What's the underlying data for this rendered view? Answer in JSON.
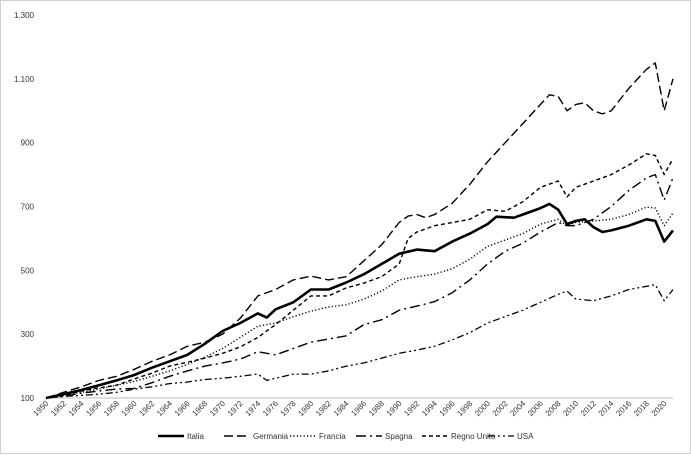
{
  "chart_data": {
    "type": "line",
    "title": "",
    "xlabel": "",
    "ylabel": "",
    "ylim": [
      100,
      1300
    ],
    "yticks": [
      100,
      300,
      500,
      700,
      900,
      1100,
      1300
    ],
    "ytick_labels": [
      "100",
      "300",
      "500",
      "700",
      "900",
      "1.100",
      "1.300"
    ],
    "xlim": [
      1950,
      2021
    ],
    "xtick_labels": [
      "1950",
      "1952",
      "1954",
      "1956",
      "1958",
      "1960",
      "1962",
      "1964",
      "1966",
      "1968",
      "1970",
      "1972",
      "1974",
      "1976",
      "1978",
      "1980",
      "1982",
      "1984",
      "1986",
      "1988",
      "1990",
      "1992",
      "1994",
      "1996",
      "1998",
      "2000",
      "2002",
      "2004",
      "2006",
      "2008",
      "2010",
      "2012",
      "2014",
      "2016",
      "2018",
      "2020"
    ],
    "grid": false,
    "legend_position": "bottom",
    "series": [
      {
        "name": "Italia",
        "color": "#000000",
        "style": "solid-thick",
        "points": [
          [
            1950,
            100
          ],
          [
            1952,
            112
          ],
          [
            1954,
            125
          ],
          [
            1956,
            140
          ],
          [
            1958,
            155
          ],
          [
            1960,
            172
          ],
          [
            1962,
            195
          ],
          [
            1964,
            215
          ],
          [
            1966,
            235
          ],
          [
            1968,
            270
          ],
          [
            1970,
            310
          ],
          [
            1972,
            335
          ],
          [
            1974,
            365
          ],
          [
            1975,
            352
          ],
          [
            1976,
            378
          ],
          [
            1978,
            400
          ],
          [
            1980,
            440
          ],
          [
            1982,
            440
          ],
          [
            1984,
            462
          ],
          [
            1986,
            488
          ],
          [
            1988,
            520
          ],
          [
            1990,
            552
          ],
          [
            1992,
            565
          ],
          [
            1994,
            560
          ],
          [
            1996,
            590
          ],
          [
            1998,
            615
          ],
          [
            2000,
            645
          ],
          [
            2001,
            668
          ],
          [
            2003,
            665
          ],
          [
            2004,
            675
          ],
          [
            2006,
            695
          ],
          [
            2007,
            708
          ],
          [
            2008,
            690
          ],
          [
            2009,
            645
          ],
          [
            2010,
            655
          ],
          [
            2011,
            660
          ],
          [
            2012,
            635
          ],
          [
            2013,
            620
          ],
          [
            2014,
            625
          ],
          [
            2016,
            640
          ],
          [
            2018,
            660
          ],
          [
            2019,
            655
          ],
          [
            2020,
            590
          ],
          [
            2021,
            625
          ]
        ]
      },
      {
        "name": "Germania",
        "color": "#000000",
        "style": "long-dash",
        "points": [
          [
            1950,
            100
          ],
          [
            1952,
            118
          ],
          [
            1954,
            135
          ],
          [
            1956,
            155
          ],
          [
            1958,
            168
          ],
          [
            1960,
            190
          ],
          [
            1962,
            215
          ],
          [
            1964,
            235
          ],
          [
            1966,
            262
          ],
          [
            1968,
            275
          ],
          [
            1970,
            300
          ],
          [
            1972,
            350
          ],
          [
            1974,
            420
          ],
          [
            1976,
            440
          ],
          [
            1978,
            470
          ],
          [
            1980,
            482
          ],
          [
            1982,
            470
          ],
          [
            1984,
            480
          ],
          [
            1986,
            530
          ],
          [
            1988,
            580
          ],
          [
            1990,
            650
          ],
          [
            1991,
            670
          ],
          [
            1992,
            675
          ],
          [
            1993,
            665
          ],
          [
            1994,
            675
          ],
          [
            1996,
            710
          ],
          [
            1998,
            770
          ],
          [
            2000,
            840
          ],
          [
            2002,
            900
          ],
          [
            2004,
            960
          ],
          [
            2006,
            1020
          ],
          [
            2007,
            1050
          ],
          [
            2008,
            1045
          ],
          [
            2009,
            1000
          ],
          [
            2010,
            1020
          ],
          [
            2011,
            1025
          ],
          [
            2012,
            1000
          ],
          [
            2013,
            990
          ],
          [
            2014,
            1000
          ],
          [
            2016,
            1070
          ],
          [
            2018,
            1130
          ],
          [
            2019,
            1150
          ],
          [
            2020,
            1000
          ],
          [
            2021,
            1100
          ]
        ]
      },
      {
        "name": "Francia",
        "color": "#000000",
        "style": "dotted",
        "points": [
          [
            1950,
            100
          ],
          [
            1952,
            110
          ],
          [
            1954,
            118
          ],
          [
            1956,
            128
          ],
          [
            1958,
            140
          ],
          [
            1960,
            152
          ],
          [
            1962,
            168
          ],
          [
            1964,
            185
          ],
          [
            1966,
            205
          ],
          [
            1968,
            228
          ],
          [
            1970,
            255
          ],
          [
            1972,
            290
          ],
          [
            1974,
            325
          ],
          [
            1976,
            335
          ],
          [
            1978,
            355
          ],
          [
            1980,
            372
          ],
          [
            1982,
            385
          ],
          [
            1984,
            392
          ],
          [
            1986,
            410
          ],
          [
            1988,
            435
          ],
          [
            1990,
            470
          ],
          [
            1992,
            480
          ],
          [
            1994,
            488
          ],
          [
            1996,
            505
          ],
          [
            1998,
            535
          ],
          [
            2000,
            575
          ],
          [
            2002,
            595
          ],
          [
            2004,
            615
          ],
          [
            2006,
            645
          ],
          [
            2008,
            660
          ],
          [
            2009,
            640
          ],
          [
            2010,
            650
          ],
          [
            2012,
            655
          ],
          [
            2014,
            660
          ],
          [
            2016,
            675
          ],
          [
            2018,
            698
          ],
          [
            2019,
            695
          ],
          [
            2020,
            640
          ],
          [
            2021,
            680
          ]
        ]
      },
      {
        "name": "Spagna",
        "color": "#000000",
        "style": "dash-dot",
        "points": [
          [
            1950,
            100
          ],
          [
            1952,
            105
          ],
          [
            1954,
            115
          ],
          [
            1956,
            122
          ],
          [
            1958,
            128
          ],
          [
            1960,
            130
          ],
          [
            1962,
            148
          ],
          [
            1964,
            168
          ],
          [
            1966,
            185
          ],
          [
            1968,
            200
          ],
          [
            1970,
            210
          ],
          [
            1972,
            222
          ],
          [
            1974,
            245
          ],
          [
            1976,
            235
          ],
          [
            1978,
            255
          ],
          [
            1980,
            275
          ],
          [
            1982,
            285
          ],
          [
            1984,
            295
          ],
          [
            1986,
            330
          ],
          [
            1988,
            345
          ],
          [
            1990,
            375
          ],
          [
            1992,
            388
          ],
          [
            1994,
            402
          ],
          [
            1996,
            430
          ],
          [
            1998,
            470
          ],
          [
            2000,
            520
          ],
          [
            2002,
            560
          ],
          [
            2004,
            585
          ],
          [
            2006,
            620
          ],
          [
            2008,
            650
          ],
          [
            2009,
            640
          ],
          [
            2010,
            640
          ],
          [
            2012,
            660
          ],
          [
            2014,
            700
          ],
          [
            2016,
            750
          ],
          [
            2018,
            790
          ],
          [
            2019,
            800
          ],
          [
            2020,
            720
          ],
          [
            2021,
            790
          ]
        ]
      },
      {
        "name": "Regno Unito",
        "color": "#000000",
        "style": "short-dash",
        "points": [
          [
            1950,
            100
          ],
          [
            1952,
            108
          ],
          [
            1954,
            122
          ],
          [
            1956,
            132
          ],
          [
            1958,
            140
          ],
          [
            1960,
            160
          ],
          [
            1962,
            178
          ],
          [
            1964,
            200
          ],
          [
            1966,
            212
          ],
          [
            1968,
            225
          ],
          [
            1970,
            240
          ],
          [
            1972,
            260
          ],
          [
            1974,
            290
          ],
          [
            1976,
            330
          ],
          [
            1978,
            375
          ],
          [
            1980,
            420
          ],
          [
            1982,
            420
          ],
          [
            1984,
            445
          ],
          [
            1986,
            460
          ],
          [
            1988,
            480
          ],
          [
            1990,
            520
          ],
          [
            1991,
            600
          ],
          [
            1992,
            620
          ],
          [
            1994,
            640
          ],
          [
            1996,
            650
          ],
          [
            1998,
            660
          ],
          [
            2000,
            690
          ],
          [
            2002,
            685
          ],
          [
            2004,
            715
          ],
          [
            2006,
            760
          ],
          [
            2008,
            780
          ],
          [
            2009,
            730
          ],
          [
            2010,
            760
          ],
          [
            2012,
            780
          ],
          [
            2014,
            800
          ],
          [
            2016,
            830
          ],
          [
            2018,
            865
          ],
          [
            2019,
            860
          ],
          [
            2020,
            800
          ],
          [
            2021,
            850
          ]
        ]
      },
      {
        "name": "USA",
        "color": "#000000",
        "style": "dash-dot-dot",
        "points": [
          [
            1950,
            100
          ],
          [
            1952,
            105
          ],
          [
            1954,
            108
          ],
          [
            1956,
            112
          ],
          [
            1958,
            118
          ],
          [
            1960,
            128
          ],
          [
            1962,
            135
          ],
          [
            1964,
            145
          ],
          [
            1966,
            150
          ],
          [
            1968,
            158
          ],
          [
            1970,
            162
          ],
          [
            1972,
            168
          ],
          [
            1974,
            175
          ],
          [
            1975,
            155
          ],
          [
            1976,
            162
          ],
          [
            1978,
            175
          ],
          [
            1980,
            175
          ],
          [
            1982,
            185
          ],
          [
            1984,
            200
          ],
          [
            1986,
            210
          ],
          [
            1988,
            225
          ],
          [
            1990,
            240
          ],
          [
            1992,
            250
          ],
          [
            1994,
            262
          ],
          [
            1996,
            282
          ],
          [
            1998,
            305
          ],
          [
            2000,
            335
          ],
          [
            2002,
            355
          ],
          [
            2004,
            375
          ],
          [
            2006,
            400
          ],
          [
            2008,
            425
          ],
          [
            2009,
            435
          ],
          [
            2010,
            410
          ],
          [
            2012,
            405
          ],
          [
            2014,
            420
          ],
          [
            2016,
            440
          ],
          [
            2018,
            450
          ],
          [
            2019,
            455
          ],
          [
            2020,
            405
          ],
          [
            2021,
            440
          ]
        ]
      }
    ]
  }
}
